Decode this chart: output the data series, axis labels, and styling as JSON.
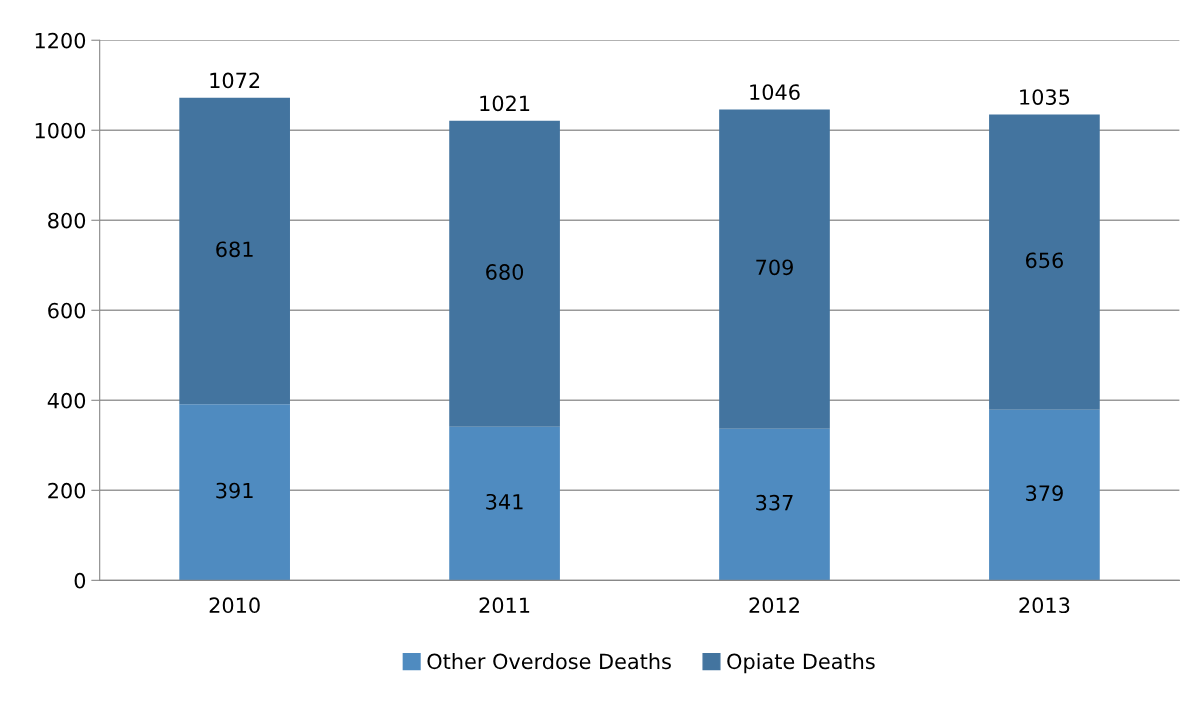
{
  "chart_data": {
    "type": "bar",
    "stacked": true,
    "categories": [
      "2010",
      "2011",
      "2012",
      "2013"
    ],
    "series": [
      {
        "name": "Other Overdose Deaths",
        "color": "#4f8bc0",
        "values": [
          391,
          341,
          337,
          379
        ]
      },
      {
        "name": "Opiate Deaths",
        "color": "#43749f",
        "values": [
          681,
          680,
          709,
          656
        ]
      }
    ],
    "totals": [
      "1072",
      "1021",
      "1046",
      "1035"
    ],
    "data_labels": true,
    "ylim": [
      0,
      1200
    ],
    "yticks": [
      0,
      200,
      400,
      600,
      800,
      1000,
      1200
    ],
    "grid": "y",
    "legend": "bottom"
  }
}
